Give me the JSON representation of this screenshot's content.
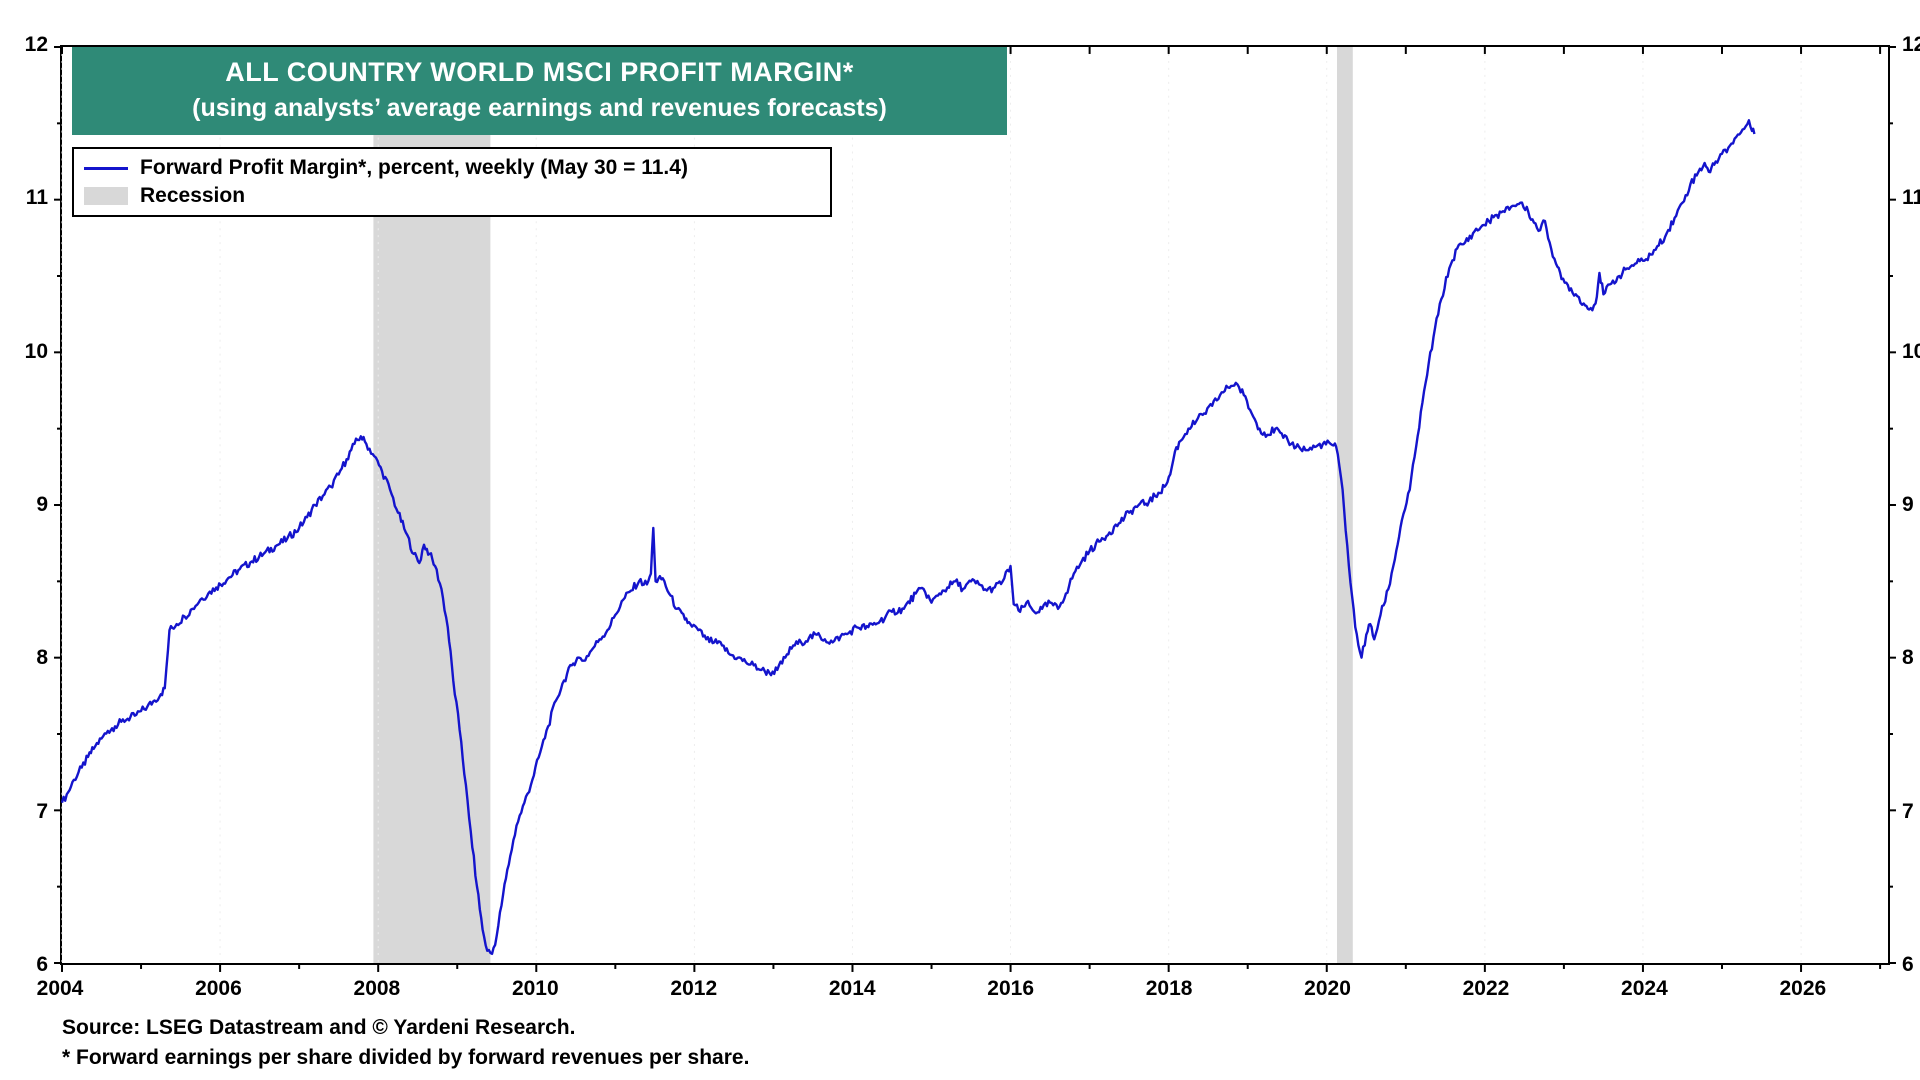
{
  "chart_data": {
    "type": "line",
    "title": "ALL COUNTRY WORLD MSCI PROFIT MARGIN*",
    "subtitle": "(using analysts’ average earnings and revenues forecasts)",
    "source": "Source: LSEG Datastream and © Yardeni Research.",
    "footnote": "* Forward earnings per share divided by forward revenues per share.",
    "legend": [
      {
        "label": "Forward Profit Margin*, percent, weekly (May 30 = 11.4)",
        "type": "line",
        "color": "#1414cc"
      },
      {
        "label": "Recession",
        "type": "area",
        "color": "#d8d8d8"
      }
    ],
    "colors": {
      "line": "#1414cc",
      "recession": "#d8d8d8",
      "title_bg": "#2f8a77",
      "grid": "#ededed",
      "axis": "#000000"
    },
    "x_range": [
      2004,
      2027.1
    ],
    "y_range": [
      6,
      12
    ],
    "x_ticks": [
      2004,
      2006,
      2008,
      2010,
      2012,
      2014,
      2016,
      2018,
      2020,
      2022,
      2024,
      2026
    ],
    "x_minor_step": 1,
    "y_ticks": [
      6,
      7,
      8,
      9,
      10,
      11,
      12
    ],
    "grid": "faint-vertical-dotted",
    "legend_position": "top-left",
    "recessions": [
      [
        2007.94,
        2009.42
      ],
      [
        2020.13,
        2020.33
      ]
    ],
    "series": [
      {
        "name": "Forward Profit Margin",
        "color": "#1414cc",
        "points": [
          [
            2004.0,
            7.05
          ],
          [
            2004.08,
            7.12
          ],
          [
            2004.15,
            7.2
          ],
          [
            2004.25,
            7.28
          ],
          [
            2004.33,
            7.35
          ],
          [
            2004.42,
            7.42
          ],
          [
            2004.5,
            7.47
          ],
          [
            2004.58,
            7.52
          ],
          [
            2004.67,
            7.55
          ],
          [
            2004.75,
            7.58
          ],
          [
            2004.83,
            7.6
          ],
          [
            2004.92,
            7.62
          ],
          [
            2005.0,
            7.65
          ],
          [
            2005.08,
            7.68
          ],
          [
            2005.17,
            7.72
          ],
          [
            2005.25,
            7.76
          ],
          [
            2005.3,
            7.8
          ],
          [
            2005.36,
            8.18
          ],
          [
            2005.45,
            8.22
          ],
          [
            2005.55,
            8.27
          ],
          [
            2005.65,
            8.32
          ],
          [
            2005.75,
            8.38
          ],
          [
            2005.85,
            8.42
          ],
          [
            2005.95,
            8.46
          ],
          [
            2006.1,
            8.52
          ],
          [
            2006.25,
            8.58
          ],
          [
            2006.4,
            8.63
          ],
          [
            2006.55,
            8.68
          ],
          [
            2006.7,
            8.73
          ],
          [
            2006.85,
            8.78
          ],
          [
            2007.0,
            8.85
          ],
          [
            2007.1,
            8.92
          ],
          [
            2007.2,
            9.0
          ],
          [
            2007.3,
            9.06
          ],
          [
            2007.4,
            9.12
          ],
          [
            2007.5,
            9.2
          ],
          [
            2007.6,
            9.3
          ],
          [
            2007.7,
            9.4
          ],
          [
            2007.78,
            9.45
          ],
          [
            2007.85,
            9.4
          ],
          [
            2007.95,
            9.32
          ],
          [
            2008.05,
            9.22
          ],
          [
            2008.15,
            9.1
          ],
          [
            2008.25,
            8.95
          ],
          [
            2008.35,
            8.82
          ],
          [
            2008.45,
            8.68
          ],
          [
            2008.52,
            8.62
          ],
          [
            2008.58,
            8.74
          ],
          [
            2008.65,
            8.68
          ],
          [
            2008.72,
            8.6
          ],
          [
            2008.8,
            8.45
          ],
          [
            2008.88,
            8.2
          ],
          [
            2008.95,
            7.85
          ],
          [
            2009.05,
            7.45
          ],
          [
            2009.15,
            6.95
          ],
          [
            2009.25,
            6.5
          ],
          [
            2009.32,
            6.22
          ],
          [
            2009.38,
            6.08
          ],
          [
            2009.44,
            6.06
          ],
          [
            2009.5,
            6.18
          ],
          [
            2009.58,
            6.45
          ],
          [
            2009.67,
            6.7
          ],
          [
            2009.75,
            6.9
          ],
          [
            2009.85,
            7.05
          ],
          [
            2009.95,
            7.2
          ],
          [
            2010.05,
            7.38
          ],
          [
            2010.15,
            7.55
          ],
          [
            2010.25,
            7.72
          ],
          [
            2010.35,
            7.85
          ],
          [
            2010.45,
            7.95
          ],
          [
            2010.52,
            8.0
          ],
          [
            2010.6,
            7.98
          ],
          [
            2010.7,
            8.05
          ],
          [
            2010.8,
            8.12
          ],
          [
            2010.9,
            8.18
          ],
          [
            2011.0,
            8.28
          ],
          [
            2011.1,
            8.38
          ],
          [
            2011.2,
            8.44
          ],
          [
            2011.3,
            8.5
          ],
          [
            2011.4,
            8.48
          ],
          [
            2011.45,
            8.55
          ],
          [
            2011.48,
            8.85
          ],
          [
            2011.51,
            8.5
          ],
          [
            2011.6,
            8.52
          ],
          [
            2011.68,
            8.42
          ],
          [
            2011.78,
            8.32
          ],
          [
            2011.88,
            8.25
          ],
          [
            2011.95,
            8.22
          ],
          [
            2012.05,
            8.18
          ],
          [
            2012.15,
            8.12
          ],
          [
            2012.25,
            8.1
          ],
          [
            2012.35,
            8.08
          ],
          [
            2012.45,
            8.02
          ],
          [
            2012.55,
            8.0
          ],
          [
            2012.65,
            7.97
          ],
          [
            2012.75,
            7.95
          ],
          [
            2012.85,
            7.92
          ],
          [
            2012.95,
            7.9
          ],
          [
            2013.05,
            7.92
          ],
          [
            2013.15,
            8.0
          ],
          [
            2013.25,
            8.08
          ],
          [
            2013.35,
            8.1
          ],
          [
            2013.45,
            8.13
          ],
          [
            2013.55,
            8.15
          ],
          [
            2013.65,
            8.12
          ],
          [
            2013.75,
            8.1
          ],
          [
            2013.85,
            8.14
          ],
          [
            2013.95,
            8.16
          ],
          [
            2014.05,
            8.2
          ],
          [
            2014.2,
            8.2
          ],
          [
            2014.35,
            8.24
          ],
          [
            2014.5,
            8.3
          ],
          [
            2014.65,
            8.32
          ],
          [
            2014.8,
            8.42
          ],
          [
            2014.9,
            8.45
          ],
          [
            2015.0,
            8.36
          ],
          [
            2015.1,
            8.42
          ],
          [
            2015.2,
            8.46
          ],
          [
            2015.3,
            8.5
          ],
          [
            2015.4,
            8.45
          ],
          [
            2015.5,
            8.5
          ],
          [
            2015.6,
            8.48
          ],
          [
            2015.7,
            8.44
          ],
          [
            2015.8,
            8.46
          ],
          [
            2015.9,
            8.5
          ],
          [
            2016.0,
            8.6
          ],
          [
            2016.04,
            8.35
          ],
          [
            2016.12,
            8.3
          ],
          [
            2016.2,
            8.36
          ],
          [
            2016.3,
            8.3
          ],
          [
            2016.4,
            8.32
          ],
          [
            2016.5,
            8.36
          ],
          [
            2016.6,
            8.32
          ],
          [
            2016.7,
            8.42
          ],
          [
            2016.8,
            8.55
          ],
          [
            2016.9,
            8.63
          ],
          [
            2017.0,
            8.7
          ],
          [
            2017.12,
            8.76
          ],
          [
            2017.25,
            8.82
          ],
          [
            2017.37,
            8.88
          ],
          [
            2017.5,
            8.95
          ],
          [
            2017.62,
            9.0
          ],
          [
            2017.75,
            9.02
          ],
          [
            2017.87,
            9.08
          ],
          [
            2017.95,
            9.12
          ],
          [
            2018.02,
            9.2
          ],
          [
            2018.08,
            9.35
          ],
          [
            2018.15,
            9.42
          ],
          [
            2018.25,
            9.5
          ],
          [
            2018.35,
            9.55
          ],
          [
            2018.45,
            9.6
          ],
          [
            2018.55,
            9.65
          ],
          [
            2018.65,
            9.72
          ],
          [
            2018.75,
            9.77
          ],
          [
            2018.85,
            9.8
          ],
          [
            2018.95,
            9.72
          ],
          [
            2019.05,
            9.6
          ],
          [
            2019.15,
            9.5
          ],
          [
            2019.25,
            9.46
          ],
          [
            2019.35,
            9.5
          ],
          [
            2019.45,
            9.44
          ],
          [
            2019.55,
            9.4
          ],
          [
            2019.65,
            9.38
          ],
          [
            2019.75,
            9.36
          ],
          [
            2019.85,
            9.38
          ],
          [
            2019.95,
            9.4
          ],
          [
            2020.05,
            9.4
          ],
          [
            2020.12,
            9.38
          ],
          [
            2020.2,
            9.1
          ],
          [
            2020.28,
            8.6
          ],
          [
            2020.36,
            8.2
          ],
          [
            2020.44,
            8.0
          ],
          [
            2020.5,
            8.15
          ],
          [
            2020.55,
            8.22
          ],
          [
            2020.6,
            8.12
          ],
          [
            2020.68,
            8.28
          ],
          [
            2020.78,
            8.45
          ],
          [
            2020.88,
            8.7
          ],
          [
            2020.95,
            8.9
          ],
          [
            2021.05,
            9.1
          ],
          [
            2021.15,
            9.45
          ],
          [
            2021.25,
            9.8
          ],
          [
            2021.35,
            10.1
          ],
          [
            2021.45,
            10.35
          ],
          [
            2021.55,
            10.55
          ],
          [
            2021.65,
            10.68
          ],
          [
            2021.75,
            10.72
          ],
          [
            2021.85,
            10.78
          ],
          [
            2021.95,
            10.82
          ],
          [
            2022.05,
            10.86
          ],
          [
            2022.15,
            10.9
          ],
          [
            2022.25,
            10.92
          ],
          [
            2022.35,
            10.96
          ],
          [
            2022.45,
            10.98
          ],
          [
            2022.55,
            10.92
          ],
          [
            2022.62,
            10.85
          ],
          [
            2022.7,
            10.8
          ],
          [
            2022.76,
            10.86
          ],
          [
            2022.82,
            10.72
          ],
          [
            2022.9,
            10.58
          ],
          [
            2022.97,
            10.48
          ],
          [
            2023.05,
            10.44
          ],
          [
            2023.15,
            10.38
          ],
          [
            2023.25,
            10.32
          ],
          [
            2023.32,
            10.28
          ],
          [
            2023.4,
            10.32
          ],
          [
            2023.45,
            10.52
          ],
          [
            2023.5,
            10.38
          ],
          [
            2023.6,
            10.45
          ],
          [
            2023.7,
            10.5
          ],
          [
            2023.8,
            10.55
          ],
          [
            2023.9,
            10.58
          ],
          [
            2024.0,
            10.6
          ],
          [
            2024.1,
            10.64
          ],
          [
            2024.2,
            10.7
          ],
          [
            2024.3,
            10.78
          ],
          [
            2024.4,
            10.88
          ],
          [
            2024.5,
            10.98
          ],
          [
            2024.6,
            11.1
          ],
          [
            2024.7,
            11.18
          ],
          [
            2024.78,
            11.24
          ],
          [
            2024.85,
            11.18
          ],
          [
            2024.92,
            11.25
          ],
          [
            2025.0,
            11.3
          ],
          [
            2025.08,
            11.34
          ],
          [
            2025.16,
            11.4
          ],
          [
            2025.24,
            11.44
          ],
          [
            2025.3,
            11.48
          ],
          [
            2025.34,
            11.52
          ],
          [
            2025.38,
            11.45
          ],
          [
            2025.41,
            11.43
          ]
        ]
      }
    ]
  }
}
